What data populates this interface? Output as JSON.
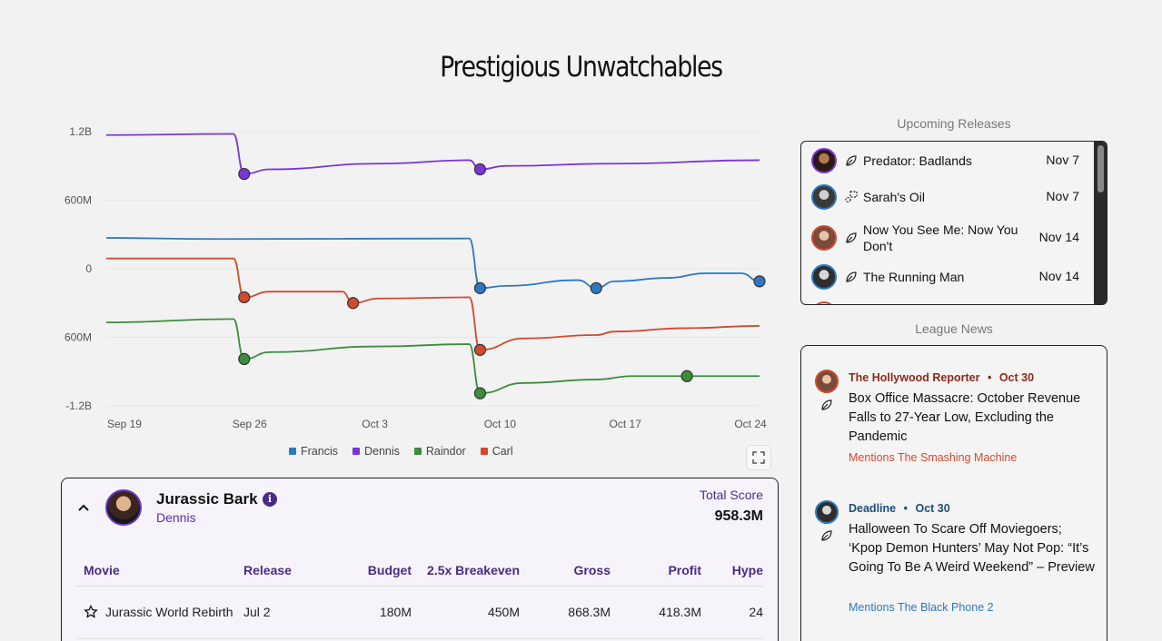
{
  "page": {
    "title": "Prestigious Unwatchables"
  },
  "chart_data": {
    "type": "line",
    "x_labels": [
      "Sep 19",
      "Sep 26",
      "Oct 3",
      "Oct 10",
      "Oct 17",
      "Oct 24"
    ],
    "y_tick_labels": [
      "1.2B",
      "600M",
      "0",
      "600M",
      "-1.2B"
    ],
    "ylim": [
      -1200000000,
      1200000000
    ],
    "legend_position": "bottom-center",
    "series": [
      {
        "name": "Francis",
        "color": "#2e78c2",
        "points": [
          [
            0,
            270000000
          ],
          [
            6,
            260000000
          ],
          [
            20,
            265000000
          ],
          [
            20.6,
            -170000000
          ],
          [
            22,
            -150000000
          ],
          [
            26,
            -100000000
          ],
          [
            27,
            -170000000
          ],
          [
            28,
            -110000000
          ],
          [
            31,
            -80000000
          ],
          [
            33,
            -40000000
          ],
          [
            35,
            -40000000
          ],
          [
            36,
            -110000000
          ]
        ],
        "markers": [
          [
            20.6,
            -170000000
          ],
          [
            27,
            -170000000
          ],
          [
            36,
            -110000000
          ]
        ]
      },
      {
        "name": "Dennis",
        "color": "#7b35d6",
        "points": [
          [
            0,
            1170000000
          ],
          [
            7,
            1180000000
          ],
          [
            7.6,
            830000000
          ],
          [
            9,
            870000000
          ],
          [
            15,
            920000000
          ],
          [
            20,
            950000000
          ],
          [
            20.6,
            870000000
          ],
          [
            22,
            900000000
          ],
          [
            28,
            920000000
          ],
          [
            36,
            950000000
          ]
        ],
        "markers": [
          [
            7.6,
            830000000
          ],
          [
            20.6,
            870000000
          ]
        ]
      },
      {
        "name": "Raindor",
        "color": "#3d8c3c",
        "points": [
          [
            0,
            -470000000
          ],
          [
            7,
            -440000000
          ],
          [
            7.6,
            -790000000
          ],
          [
            9,
            -730000000
          ],
          [
            15,
            -680000000
          ],
          [
            20,
            -660000000
          ],
          [
            20.6,
            -1090000000
          ],
          [
            23,
            -1000000000
          ],
          [
            27,
            -970000000
          ],
          [
            29,
            -940000000
          ],
          [
            32,
            -940000000
          ],
          [
            36,
            -940000000
          ]
        ],
        "markers": [
          [
            7.6,
            -790000000
          ],
          [
            20.6,
            -1090000000
          ],
          [
            32,
            -940000000
          ]
        ]
      },
      {
        "name": "Carl",
        "color": "#d24a2e",
        "points": [
          [
            0,
            90000000
          ],
          [
            7,
            90000000
          ],
          [
            7.6,
            -250000000
          ],
          [
            9,
            -200000000
          ],
          [
            13,
            -200000000
          ],
          [
            13.6,
            -300000000
          ],
          [
            15,
            -260000000
          ],
          [
            20,
            -250000000
          ],
          [
            20.6,
            -710000000
          ],
          [
            23,
            -610000000
          ],
          [
            27,
            -580000000
          ],
          [
            28,
            -550000000
          ],
          [
            32,
            -520000000
          ],
          [
            36,
            -500000000
          ]
        ],
        "markers": [
          [
            7.6,
            -250000000
          ],
          [
            13.6,
            -300000000
          ],
          [
            20.6,
            -710000000
          ]
        ]
      }
    ]
  },
  "team": {
    "name": "Jurassic Bark",
    "owner": "Dennis",
    "total_label": "Total Score",
    "total_value": "958.3M",
    "info_glyph": "i",
    "columns": [
      "Movie",
      "Release",
      "Budget",
      "2.5x Breakeven",
      "Gross",
      "Profit",
      "Hype"
    ],
    "rows": [
      {
        "movie": "Jurassic World Rebirth",
        "release": "Jul 2",
        "budget": "180M",
        "breakeven": "450M",
        "gross": "868.3M",
        "profit": "418.3M",
        "hype": "24"
      }
    ]
  },
  "upcoming": {
    "title": "Upcoming Releases",
    "items": [
      {
        "title": "Predator: Badlands",
        "date": "Nov 7",
        "icon": "leaf-icon",
        "ring": "#7b35d6"
      },
      {
        "title": "Sarah's Oil",
        "date": "Nov 7",
        "icon": "dashed-frame-icon",
        "ring": "#2e78c2"
      },
      {
        "title": "Now You See Me: Now You Don't",
        "date": "Nov 14",
        "icon": "leaf-icon",
        "ring": "#d24a2e"
      },
      {
        "title": "The Running Man",
        "date": "Nov 14",
        "icon": "leaf-icon",
        "ring": "#2e78c2"
      }
    ]
  },
  "news": {
    "title": "League News",
    "items": [
      {
        "source": "The Hollywood Reporter",
        "date": "Oct 30",
        "color": "#8a2a1c",
        "headline": "Box Office Massacre: October Revenue Falls to 27-Year Low, Excluding the Pandemic",
        "mention": "Mentions The Smashing Machine",
        "mention_color": "#d24a2e"
      },
      {
        "source": "Deadline",
        "date": "Oct 30",
        "color": "#1e4f7e",
        "headline": "Halloween To Scare Off Moviegoers; ‘Kpop Demon Hunters’ May Not Pop: “It’s Going To Be A Weird Weekend” – Preview",
        "mention": "Mentions The Black Phone 2",
        "mention_color": "#2e78c2"
      }
    ]
  }
}
